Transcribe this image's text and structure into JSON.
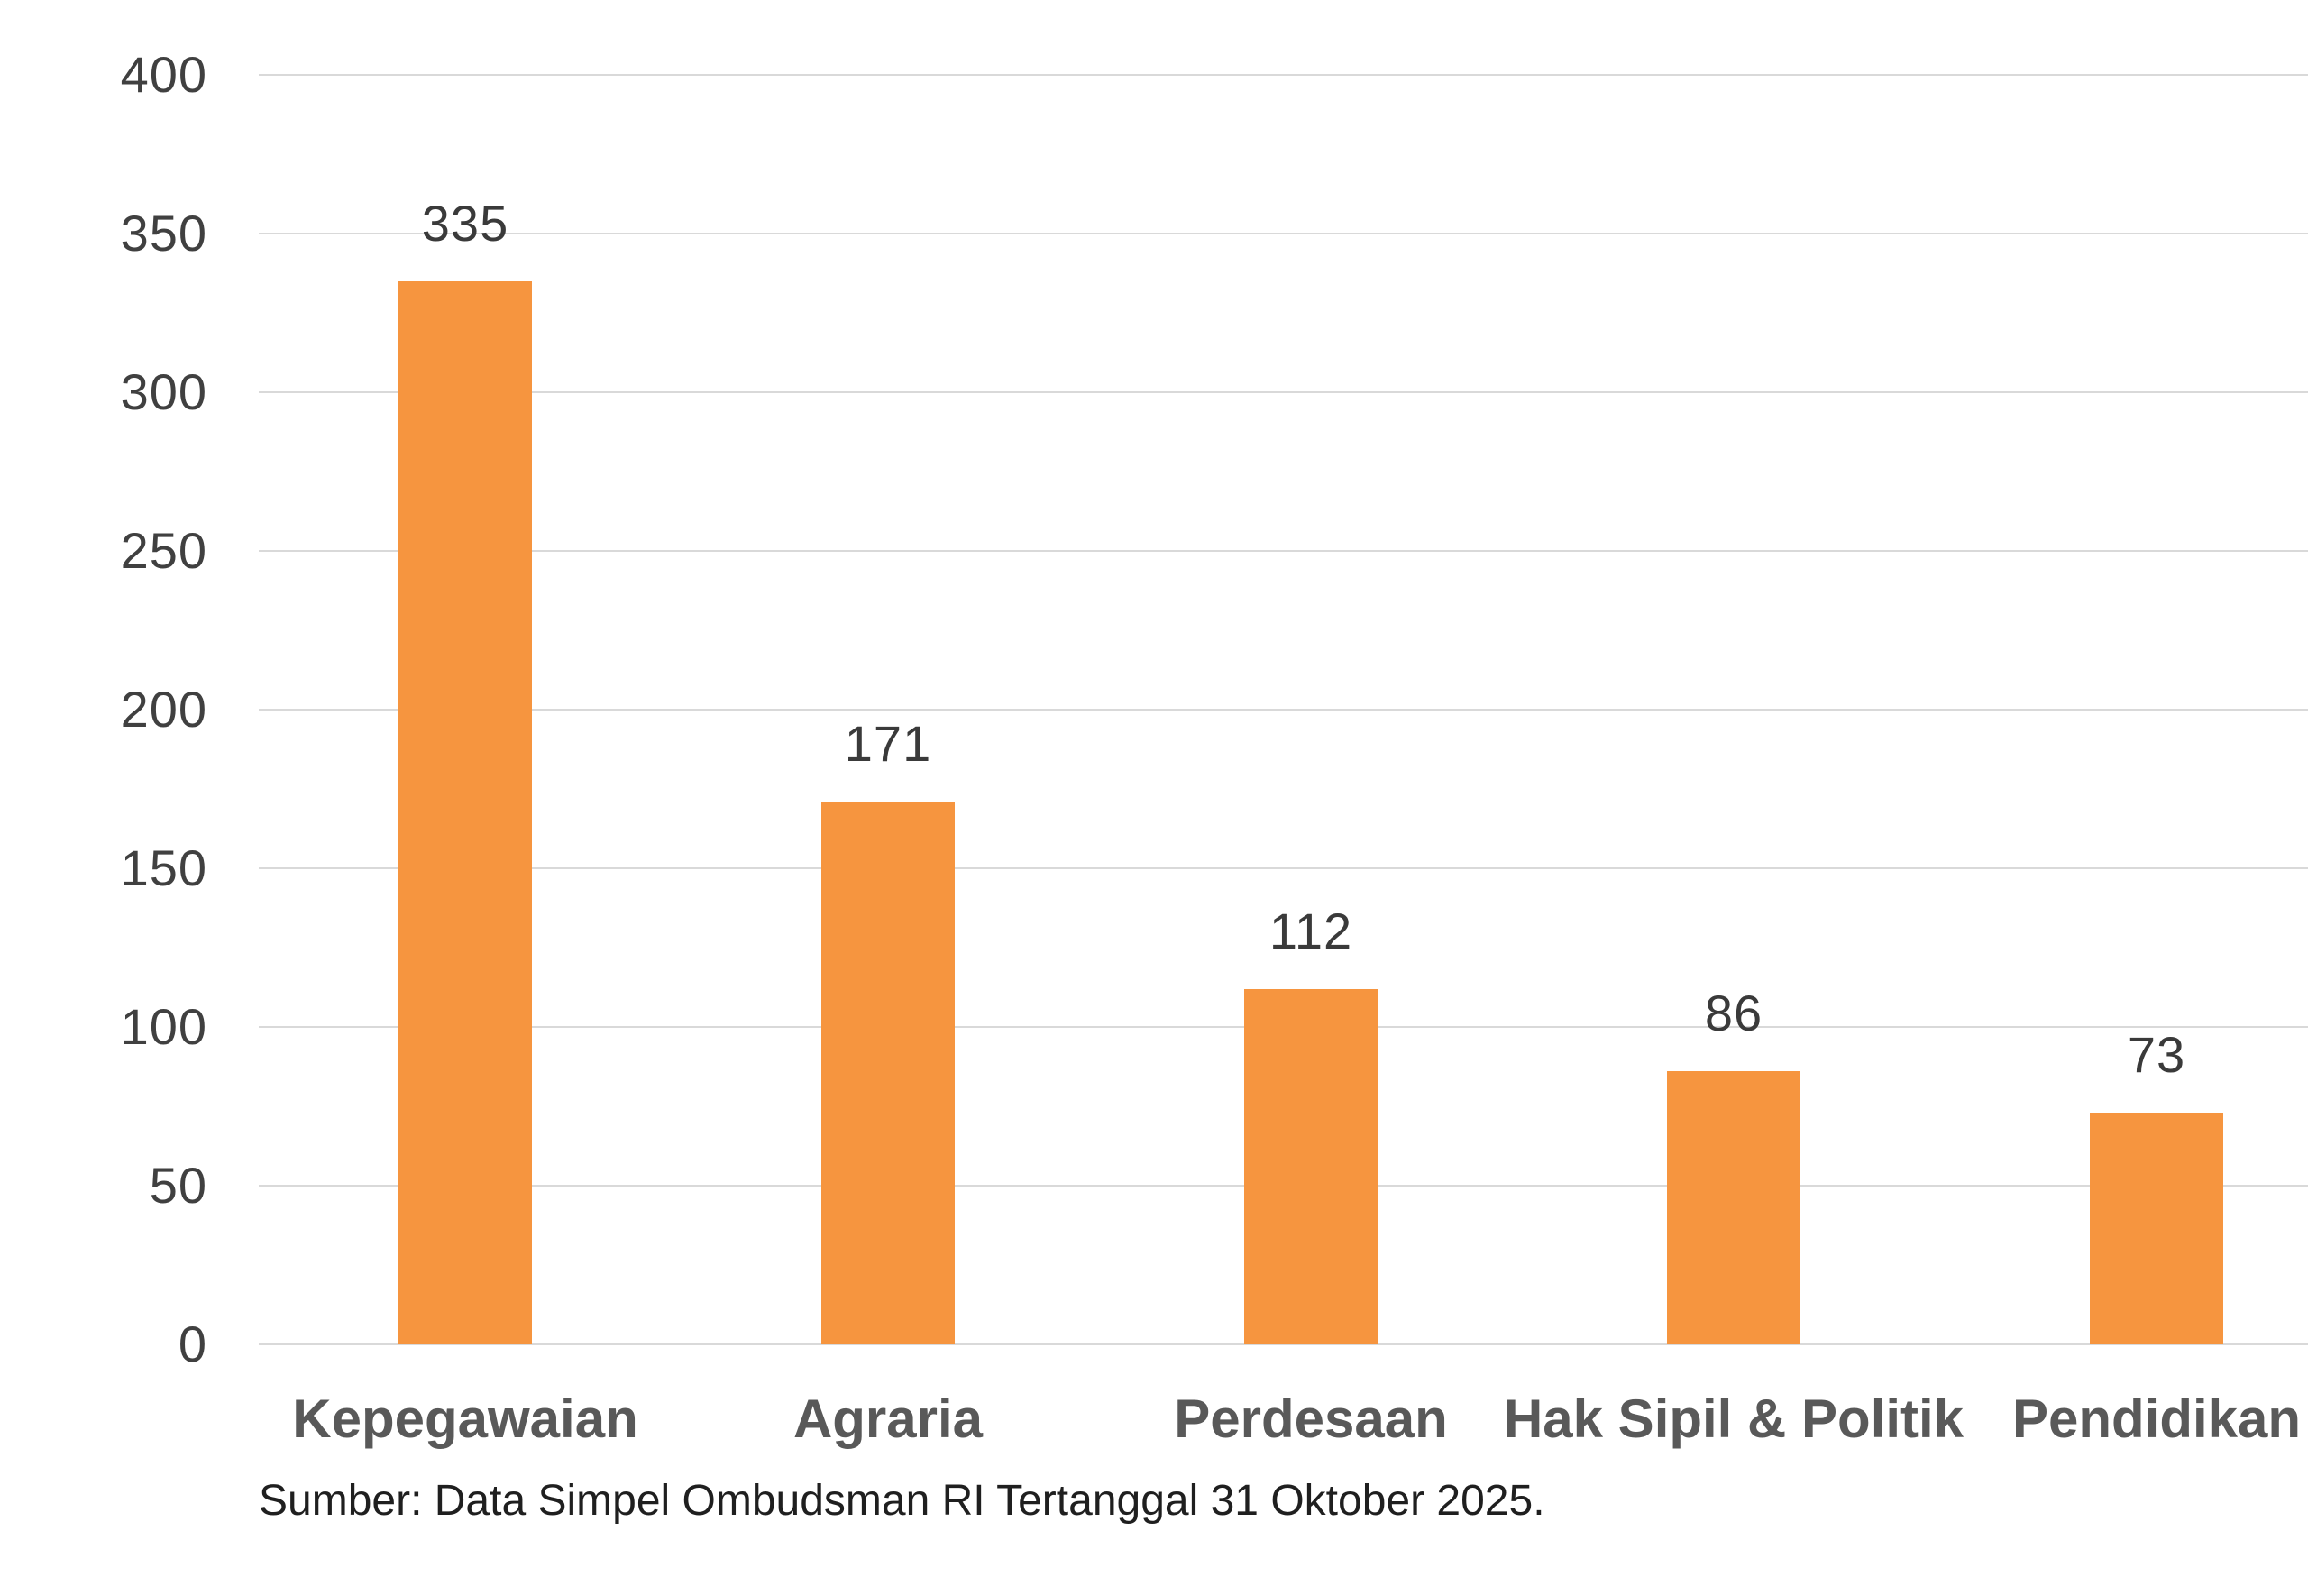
{
  "chart_data": {
    "type": "bar",
    "categories": [
      "Kepegawaian",
      "Agraria",
      "Perdesaan",
      "Hak Sipil & Politik",
      "Pendidikan"
    ],
    "values": [
      335,
      171,
      112,
      86,
      73
    ],
    "data_labels": [
      "335",
      "171",
      "112",
      "86",
      "73"
    ],
    "title": "",
    "xlabel": "",
    "ylabel": "",
    "ylim": [
      0,
      400
    ],
    "yticks": [
      0,
      50,
      100,
      150,
      200,
      250,
      300,
      350,
      400
    ],
    "grid": true,
    "legend": false,
    "source_note": "Sumber: Data Simpel Ombudsman RI Tertanggal 31 Oktober 2025."
  },
  "colors": {
    "bar_fill": "#F6953F",
    "gridline": "#D9D9D9",
    "tick_text": "#404040",
    "data_label_text": "#3A3A3A",
    "category_text": "#595959",
    "source_text": "#1F1F1F",
    "background": "#FFFFFF"
  }
}
